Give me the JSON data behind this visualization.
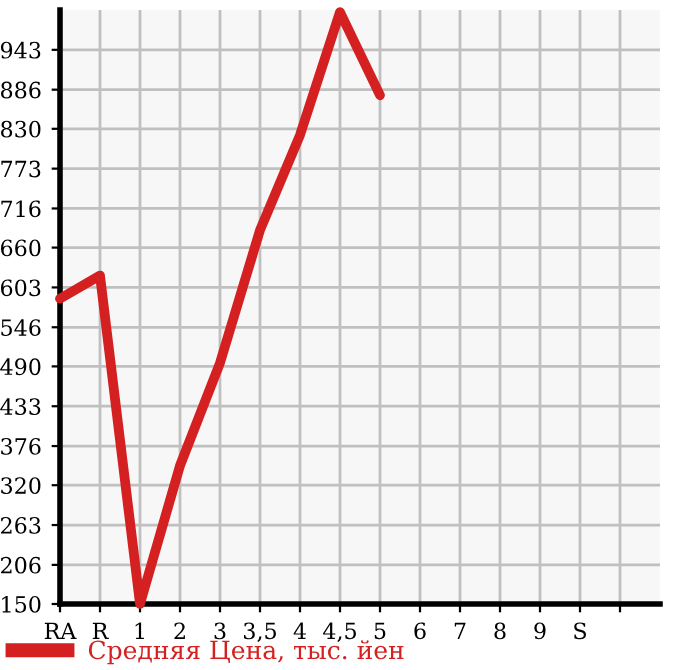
{
  "chart_data": {
    "type": "line",
    "categories": [
      "RA",
      "R",
      "1",
      "2",
      "3",
      "3,5",
      "4",
      "4,5",
      "5",
      "6",
      "7",
      "8",
      "9",
      "S",
      null
    ],
    "series": [
      {
        "name": "Средняя Цена, тыс. йен",
        "color": "#d42020",
        "values": [
          587,
          620,
          150,
          348,
          495,
          685,
          821,
          997,
          878,
          null,
          null,
          null,
          null,
          null,
          null
        ]
      }
    ],
    "ylim": [
      150,
      1000
    ],
    "yticks": [
      150,
      206,
      263,
      320,
      376,
      433,
      490,
      546,
      603,
      660,
      716,
      773,
      830,
      886,
      943
    ],
    "grid": true,
    "legend": "bottom left",
    "marker": "none",
    "line_style": "solid"
  }
}
